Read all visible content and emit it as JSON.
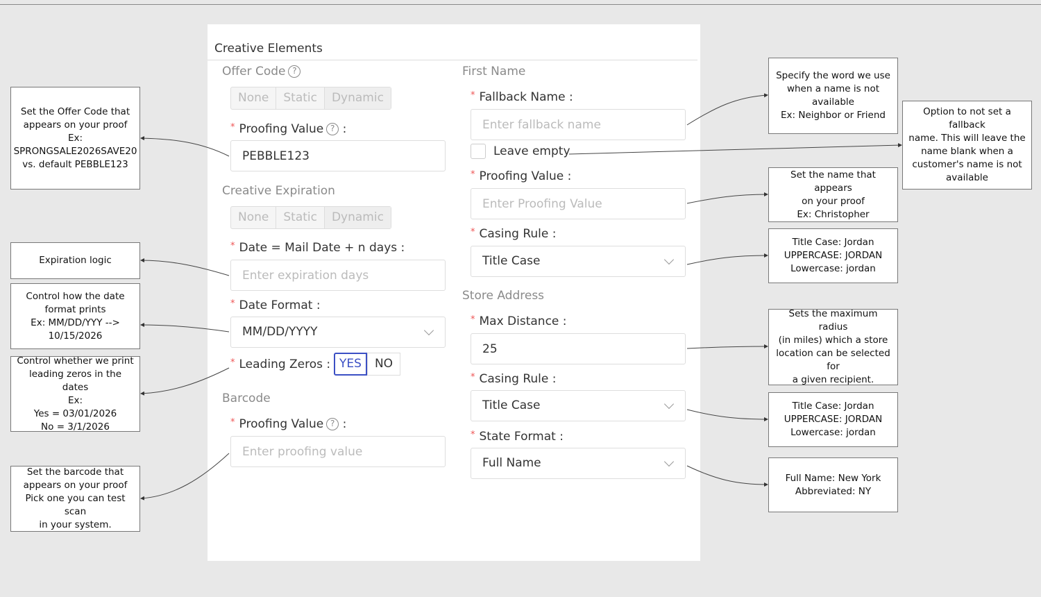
{
  "panel": {
    "title": "Creative Elements"
  },
  "offer_code": {
    "section": "Offer Code",
    "segments": [
      "None",
      "Static",
      "Dynamic"
    ],
    "proofing_label": "Proofing Value",
    "proofing_value": "PEBBLE123"
  },
  "expiration": {
    "section": "Creative Expiration",
    "segments": [
      "None",
      "Static",
      "Dynamic"
    ],
    "date_label": "Date = Mail Date + n days",
    "date_placeholder": "Enter expiration days",
    "format_label": "Date Format",
    "format_value": "MM/DD/YYYY",
    "zeros_label": "Leading Zeros",
    "zeros_options": [
      "YES",
      "NO"
    ],
    "zeros_selected": "YES"
  },
  "barcode": {
    "section": "Barcode",
    "proofing_label": "Proofing Value",
    "proofing_placeholder": "Enter proofing value"
  },
  "first_name": {
    "section": "First Name",
    "fallback_label": "Fallback Name",
    "fallback_placeholder": "Enter fallback name",
    "leave_empty_label": "Leave empty",
    "leave_empty_checked": false,
    "proofing_label": "Proofing Value",
    "proofing_placeholder": "Enter Proofing Value",
    "casing_label": "Casing Rule",
    "casing_value": "Title Case"
  },
  "store_address": {
    "section": "Store Address",
    "distance_label": "Max Distance",
    "distance_value": "25",
    "casing_label": "Casing Rule",
    "casing_value": "Title Case",
    "state_label": "State Format",
    "state_value": "Full Name"
  },
  "notes": {
    "offer_code": "Set the Offer Code that\nappears on your proof\nEx:\nSPRONGSALE2026SAVE20\nvs. default PEBBLE123",
    "expiration": "Expiration logic",
    "date_format": "Control how the date\nformat prints\nEx: MM/DD/YYY -->\n10/15/2026",
    "leading_zeros": "Control whether we print\nleading zeros in the dates\nEx:\nYes = 03/01/2026\nNo = 3/1/2026",
    "barcode": "Set the barcode that\nappears on your proof\nPick one you can test scan\nin your system.",
    "fallback": "Specify the word we use\nwhen a name is not\navailable\nEx: Neighbor or Friend",
    "leave_empty": "Option to not set a fallback\nname. This will leave the\nname blank when a\ncustomer's name is not\navailable",
    "name_proofing": "Set the name that appears\non your proof\nEx: Christopher",
    "name_casing": "Title Case: Jordan\nUPPERCASE: JORDAN\nLowercase: jordan",
    "max_distance": "Sets the maximum radius\n(in miles) which a store\nlocation can be selected for\na given recipient.",
    "store_casing": "Title Case: Jordan\nUPPERCASE: JORDAN\nLowercase: jordan",
    "state_format": "Full Name: New York\nAbbreviated: NY"
  },
  "colors": {
    "accent": "#3b4fc4",
    "required": "#e55555",
    "background": "#e8e8e8"
  }
}
